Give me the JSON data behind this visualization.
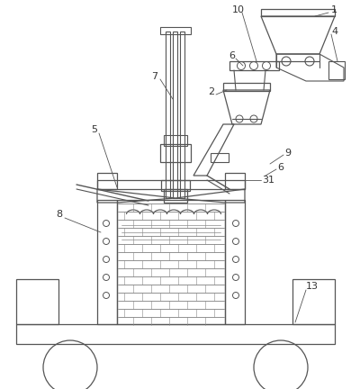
{
  "lc": "#555555",
  "lc2": "#333333",
  "fig_width": 3.9,
  "fig_height": 4.32,
  "dpi": 100
}
